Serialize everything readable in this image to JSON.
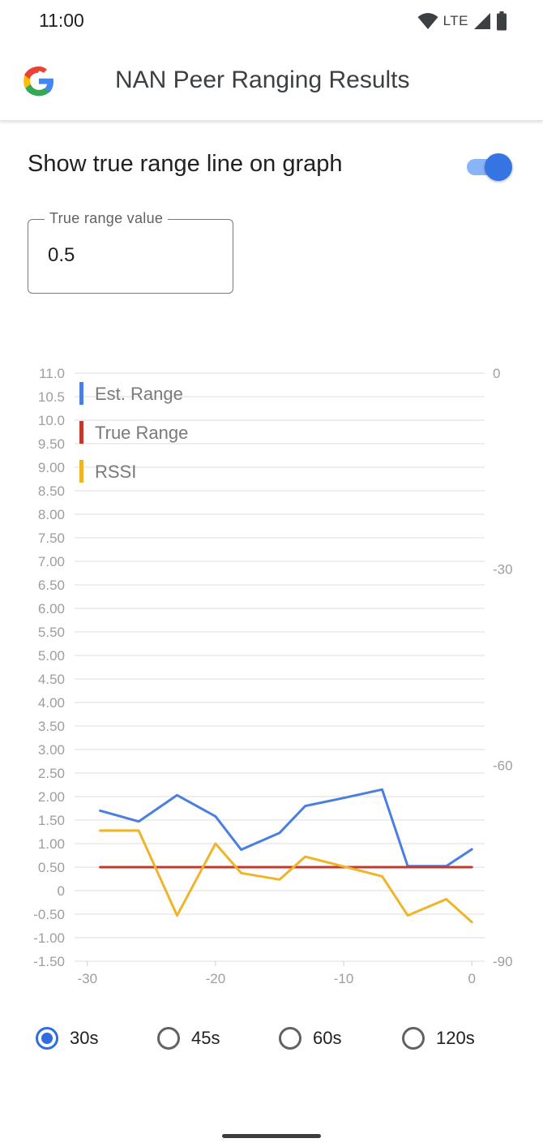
{
  "status_bar": {
    "time": "11:00",
    "network": "LTE"
  },
  "app_bar": {
    "title": "NAN Peer Ranging Results",
    "logo": "google-g-logo"
  },
  "settings": {
    "show_true_range_label": "Show true range line on graph",
    "show_true_range_on": true,
    "true_range_field": {
      "label": "True range value",
      "value": "0.5"
    }
  },
  "chart_data": {
    "type": "line",
    "x": [
      -29,
      -26,
      -23,
      -20,
      -18,
      -15,
      -13,
      -10,
      -7,
      -5,
      -2,
      0
    ],
    "xlim": [
      -31,
      1
    ],
    "x_ticks": [
      "-30",
      "-20",
      "-10",
      "0"
    ],
    "ylim": [
      -1.5,
      11.0
    ],
    "y_ticks": [
      "11.0",
      "10.5",
      "10.0",
      "9.50",
      "9.00",
      "8.50",
      "8.00",
      "7.50",
      "7.00",
      "6.50",
      "6.00",
      "5.50",
      "5.00",
      "4.50",
      "4.00",
      "3.50",
      "3.00",
      "2.50",
      "2.00",
      "1.50",
      "1.00",
      "0.50",
      "0",
      "-0.50",
      "-1.00",
      "-1.50"
    ],
    "y2lim": [
      -90,
      0
    ],
    "y2_ticks": [
      "0",
      "-30",
      "-60",
      "-90"
    ],
    "grid": true,
    "legend_position": "top-left",
    "series": [
      {
        "name": "Est. Range",
        "axis": "left",
        "color": "#4a7fe0",
        "x": [
          -29,
          -26,
          -23,
          -20,
          -18,
          -15,
          -13,
          -10,
          -7,
          -5,
          -2,
          0
        ],
        "values": [
          1.7,
          1.47,
          2.03,
          1.58,
          0.87,
          1.23,
          1.8,
          1.97,
          2.15,
          0.52,
          0.52,
          0.88
        ]
      },
      {
        "name": "True Range",
        "axis": "left",
        "color": "#c0392b",
        "x": [
          -29,
          0
        ],
        "values": [
          0.5,
          0.5
        ]
      },
      {
        "name": "RSSI",
        "axis": "right",
        "color": "#f0b429",
        "x": [
          -29,
          -26,
          -23,
          -20,
          -18,
          -15,
          -13,
          -10,
          -7,
          -5,
          -2,
          0
        ],
        "values": [
          -70,
          -70,
          -83,
          -72,
          -76.5,
          -77.5,
          -74,
          -75.5,
          -77,
          -83,
          -80.5,
          -84
        ]
      }
    ]
  },
  "time_window": {
    "options": [
      {
        "label": "30s",
        "selected": true
      },
      {
        "label": "45s",
        "selected": false
      },
      {
        "label": "60s",
        "selected": false
      },
      {
        "label": "120s",
        "selected": false
      }
    ]
  }
}
